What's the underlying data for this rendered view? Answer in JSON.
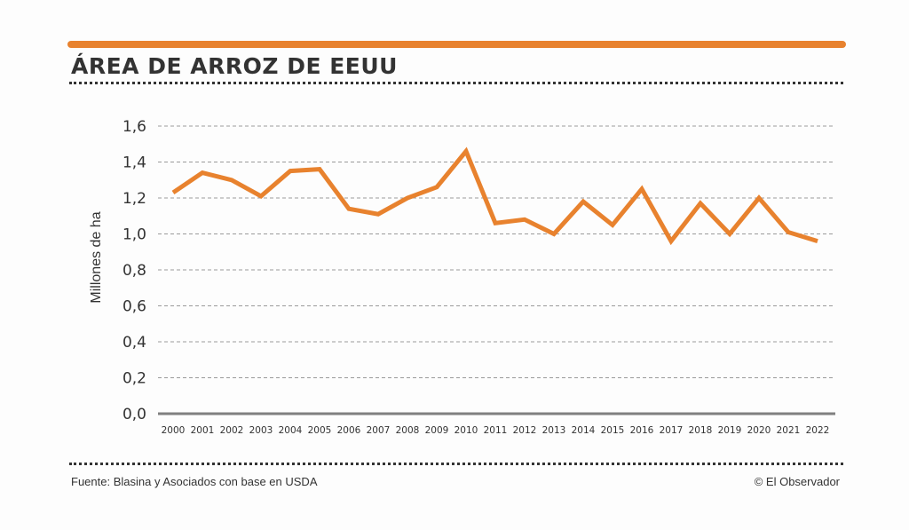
{
  "header": {
    "title": "ÁREA DE ARROZ DE EEUU"
  },
  "footer": {
    "source": "Fuente: Blasina y Asociados con base en USDA",
    "credit": "© El Observador"
  },
  "colors": {
    "accent": "#e8822e",
    "text": "#333333",
    "grid": "#9a9a9a",
    "baseline": "#808080"
  },
  "chart_data": {
    "type": "line",
    "title": "ÁREA DE ARROZ DE EEUU",
    "xlabel": "",
    "ylabel": "Millones de ha",
    "ylim": [
      0,
      1.6
    ],
    "yticks": [
      "0,0",
      "0,2",
      "0,4",
      "0,6",
      "0,8",
      "1,0",
      "1,2",
      "1,4",
      "1,6"
    ],
    "grid": true,
    "categories": [
      "2000",
      "2001",
      "2002",
      "2003",
      "2004",
      "2005",
      "2006",
      "2007",
      "2008",
      "2009",
      "2010",
      "2011",
      "2012",
      "2013",
      "2014",
      "2015",
      "2016",
      "2017",
      "2018",
      "2019",
      "2020",
      "2021",
      "2022"
    ],
    "series": [
      {
        "name": "Área de arroz",
        "values": [
          1.23,
          1.34,
          1.3,
          1.21,
          1.35,
          1.36,
          1.14,
          1.11,
          1.2,
          1.26,
          1.46,
          1.06,
          1.08,
          1.0,
          1.18,
          1.05,
          1.25,
          0.96,
          1.17,
          1.0,
          1.2,
          1.01,
          0.96
        ]
      }
    ]
  }
}
